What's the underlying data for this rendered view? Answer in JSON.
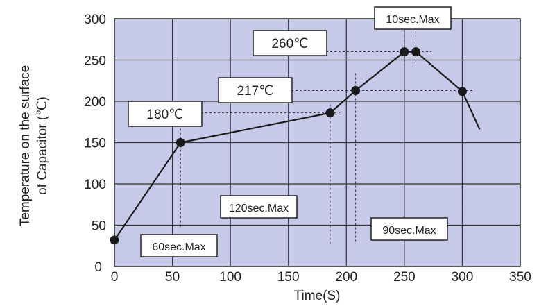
{
  "chart_data": {
    "type": "line",
    "xlabel": "Time(S)",
    "ylabel_lines": [
      "Temperature on the surface",
      "of Capacitor (℃)"
    ],
    "xlim": [
      0,
      350
    ],
    "ylim": [
      0,
      300
    ],
    "x_ticks": [
      0,
      50,
      100,
      150,
      200,
      250,
      300,
      350
    ],
    "y_ticks": [
      0,
      50,
      100,
      150,
      200,
      250,
      300
    ],
    "grid": true,
    "plot_background": "#c7c9e8",
    "series": [
      {
        "x": [
          0,
          57,
          186,
          208,
          250,
          260,
          300,
          315
        ],
        "y": [
          32,
          150,
          186,
          213,
          260,
          260,
          212,
          166
        ],
        "markers": [
          0,
          1,
          2,
          3,
          4,
          5,
          6
        ]
      }
    ],
    "annotations": [
      {
        "text": "180℃",
        "kind": "temperature"
      },
      {
        "text": "217℃",
        "kind": "temperature"
      },
      {
        "text": "260℃",
        "kind": "temperature"
      },
      {
        "text": "10sec.Max",
        "kind": "duration"
      },
      {
        "text": "120sec.Max",
        "kind": "duration"
      },
      {
        "text": "60sec.Max",
        "kind": "duration"
      },
      {
        "text": "90sec.Max",
        "kind": "duration"
      }
    ]
  }
}
